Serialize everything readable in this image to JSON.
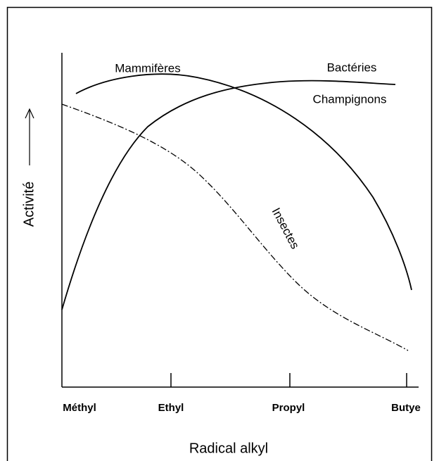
{
  "curves": [
    {
      "label": "Mammifères"
    },
    {
      "label": "Bactéries"
    },
    {
      "label": "Champignons"
    },
    {
      "label": "Insectes"
    }
  ],
  "y_axis": {
    "label": "Activité"
  },
  "x_axis": {
    "label": "Radical alkyl",
    "categories": [
      "Méthyl",
      "Ethyl",
      "Propyl",
      "Butye"
    ]
  }
}
